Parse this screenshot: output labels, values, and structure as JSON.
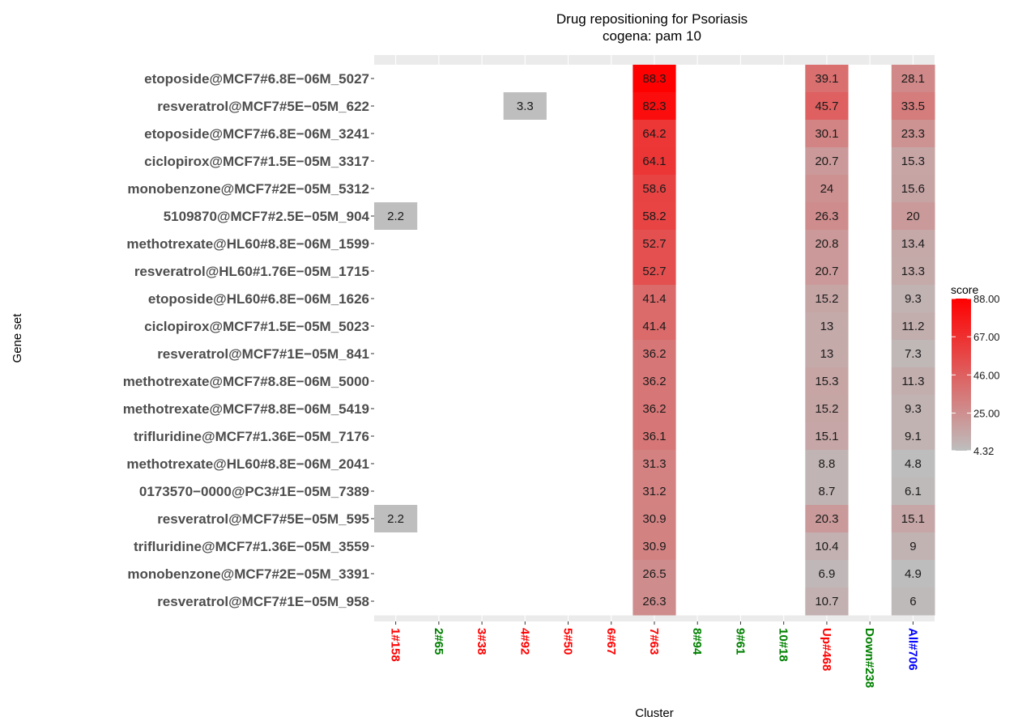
{
  "chart_data": {
    "type": "heatmap",
    "title": "Drug repositioning for Psoriasis",
    "subtitle": "cogena: pam 10",
    "xlabel": "Cluster",
    "ylabel": "Gene set",
    "legend": {
      "title": "score",
      "position": "right",
      "labels": [
        "88.00",
        "67.00",
        "46.00",
        "25.00",
        "4.32"
      ],
      "min": 4.32,
      "max": 88.0
    },
    "colors": {
      "low": "#bebebe",
      "high": "#ff0000",
      "panel_bg": "#ebebeb",
      "tick_text": "#4d4d4d",
      "up": "#ff0000",
      "down": "#008000",
      "all": "#0000ff"
    },
    "x_categories": [
      {
        "label": "1#158",
        "color": "#ff0000"
      },
      {
        "label": "2#65",
        "color": "#008000"
      },
      {
        "label": "3#38",
        "color": "#ff0000"
      },
      {
        "label": "4#92",
        "color": "#ff0000"
      },
      {
        "label": "5#50",
        "color": "#ff0000"
      },
      {
        "label": "6#67",
        "color": "#ff0000"
      },
      {
        "label": "7#63",
        "color": "#ff0000"
      },
      {
        "label": "8#94",
        "color": "#008000"
      },
      {
        "label": "9#61",
        "color": "#008000"
      },
      {
        "label": "10#18",
        "color": "#008000"
      },
      {
        "label": "Up#468",
        "color": "#ff0000"
      },
      {
        "label": "Down#238",
        "color": "#008000"
      },
      {
        "label": "All#706",
        "color": "#0000ff"
      }
    ],
    "y_categories": [
      "etoposide@MCF7#6.8E−06M_5027",
      "resveratrol@MCF7#5E−05M_622",
      "etoposide@MCF7#6.8E−06M_3241",
      "ciclopirox@MCF7#1.5E−05M_3317",
      "monobenzone@MCF7#2E−05M_5312",
      "5109870@MCF7#2.5E−05M_904",
      "methotrexate@HL60#8.8E−06M_1599",
      "resveratrol@HL60#1.76E−05M_1715",
      "etoposide@HL60#6.8E−06M_1626",
      "ciclopirox@MCF7#1.5E−05M_5023",
      "resveratrol@MCF7#1E−05M_841",
      "methotrexate@MCF7#8.8E−06M_5000",
      "methotrexate@MCF7#8.8E−06M_5419",
      "trifluridine@MCF7#1.36E−05M_7176",
      "methotrexate@HL60#8.8E−06M_2041",
      "0173570−0000@PC3#1E−05M_7389",
      "resveratrol@MCF7#5E−05M_595",
      "trifluridine@MCF7#1.36E−05M_3559",
      "monobenzone@MCF7#2E−05M_3391",
      "resveratrol@MCF7#1E−05M_958"
    ],
    "values": [
      [
        null,
        null,
        null,
        null,
        null,
        null,
        88.3,
        null,
        null,
        null,
        39.1,
        null,
        28.1
      ],
      [
        null,
        null,
        null,
        3.3,
        null,
        null,
        82.3,
        null,
        null,
        null,
        45.7,
        null,
        33.5
      ],
      [
        null,
        null,
        null,
        null,
        null,
        null,
        64.2,
        null,
        null,
        null,
        30.1,
        null,
        23.3
      ],
      [
        null,
        null,
        null,
        null,
        null,
        null,
        64.1,
        null,
        null,
        null,
        20.7,
        null,
        15.3
      ],
      [
        null,
        null,
        null,
        null,
        null,
        null,
        58.6,
        null,
        null,
        null,
        24,
        null,
        15.6
      ],
      [
        2.2,
        null,
        null,
        null,
        null,
        null,
        58.2,
        null,
        null,
        null,
        26.3,
        null,
        20
      ],
      [
        null,
        null,
        null,
        null,
        null,
        null,
        52.7,
        null,
        null,
        null,
        20.8,
        null,
        13.4
      ],
      [
        null,
        null,
        null,
        null,
        null,
        null,
        52.7,
        null,
        null,
        null,
        20.7,
        null,
        13.3
      ],
      [
        null,
        null,
        null,
        null,
        null,
        null,
        41.4,
        null,
        null,
        null,
        15.2,
        null,
        9.3
      ],
      [
        null,
        null,
        null,
        null,
        null,
        null,
        41.4,
        null,
        null,
        null,
        13,
        null,
        11.2
      ],
      [
        null,
        null,
        null,
        null,
        null,
        null,
        36.2,
        null,
        null,
        null,
        13,
        null,
        7.3
      ],
      [
        null,
        null,
        null,
        null,
        null,
        null,
        36.2,
        null,
        null,
        null,
        15.3,
        null,
        11.3
      ],
      [
        null,
        null,
        null,
        null,
        null,
        null,
        36.2,
        null,
        null,
        null,
        15.2,
        null,
        9.3
      ],
      [
        null,
        null,
        null,
        null,
        null,
        null,
        36.1,
        null,
        null,
        null,
        15.1,
        null,
        9.1
      ],
      [
        null,
        null,
        null,
        null,
        null,
        null,
        31.3,
        null,
        null,
        null,
        8.8,
        null,
        4.8
      ],
      [
        null,
        null,
        null,
        null,
        null,
        null,
        31.2,
        null,
        null,
        null,
        8.7,
        null,
        6.1
      ],
      [
        2.2,
        null,
        null,
        null,
        null,
        null,
        30.9,
        null,
        null,
        null,
        20.3,
        null,
        15.1
      ],
      [
        null,
        null,
        null,
        null,
        null,
        null,
        30.9,
        null,
        null,
        null,
        10.4,
        null,
        9
      ],
      [
        null,
        null,
        null,
        null,
        null,
        null,
        26.5,
        null,
        null,
        null,
        6.9,
        null,
        4.9
      ],
      [
        null,
        null,
        null,
        null,
        null,
        null,
        26.3,
        null,
        null,
        null,
        10.7,
        null,
        6
      ]
    ]
  }
}
